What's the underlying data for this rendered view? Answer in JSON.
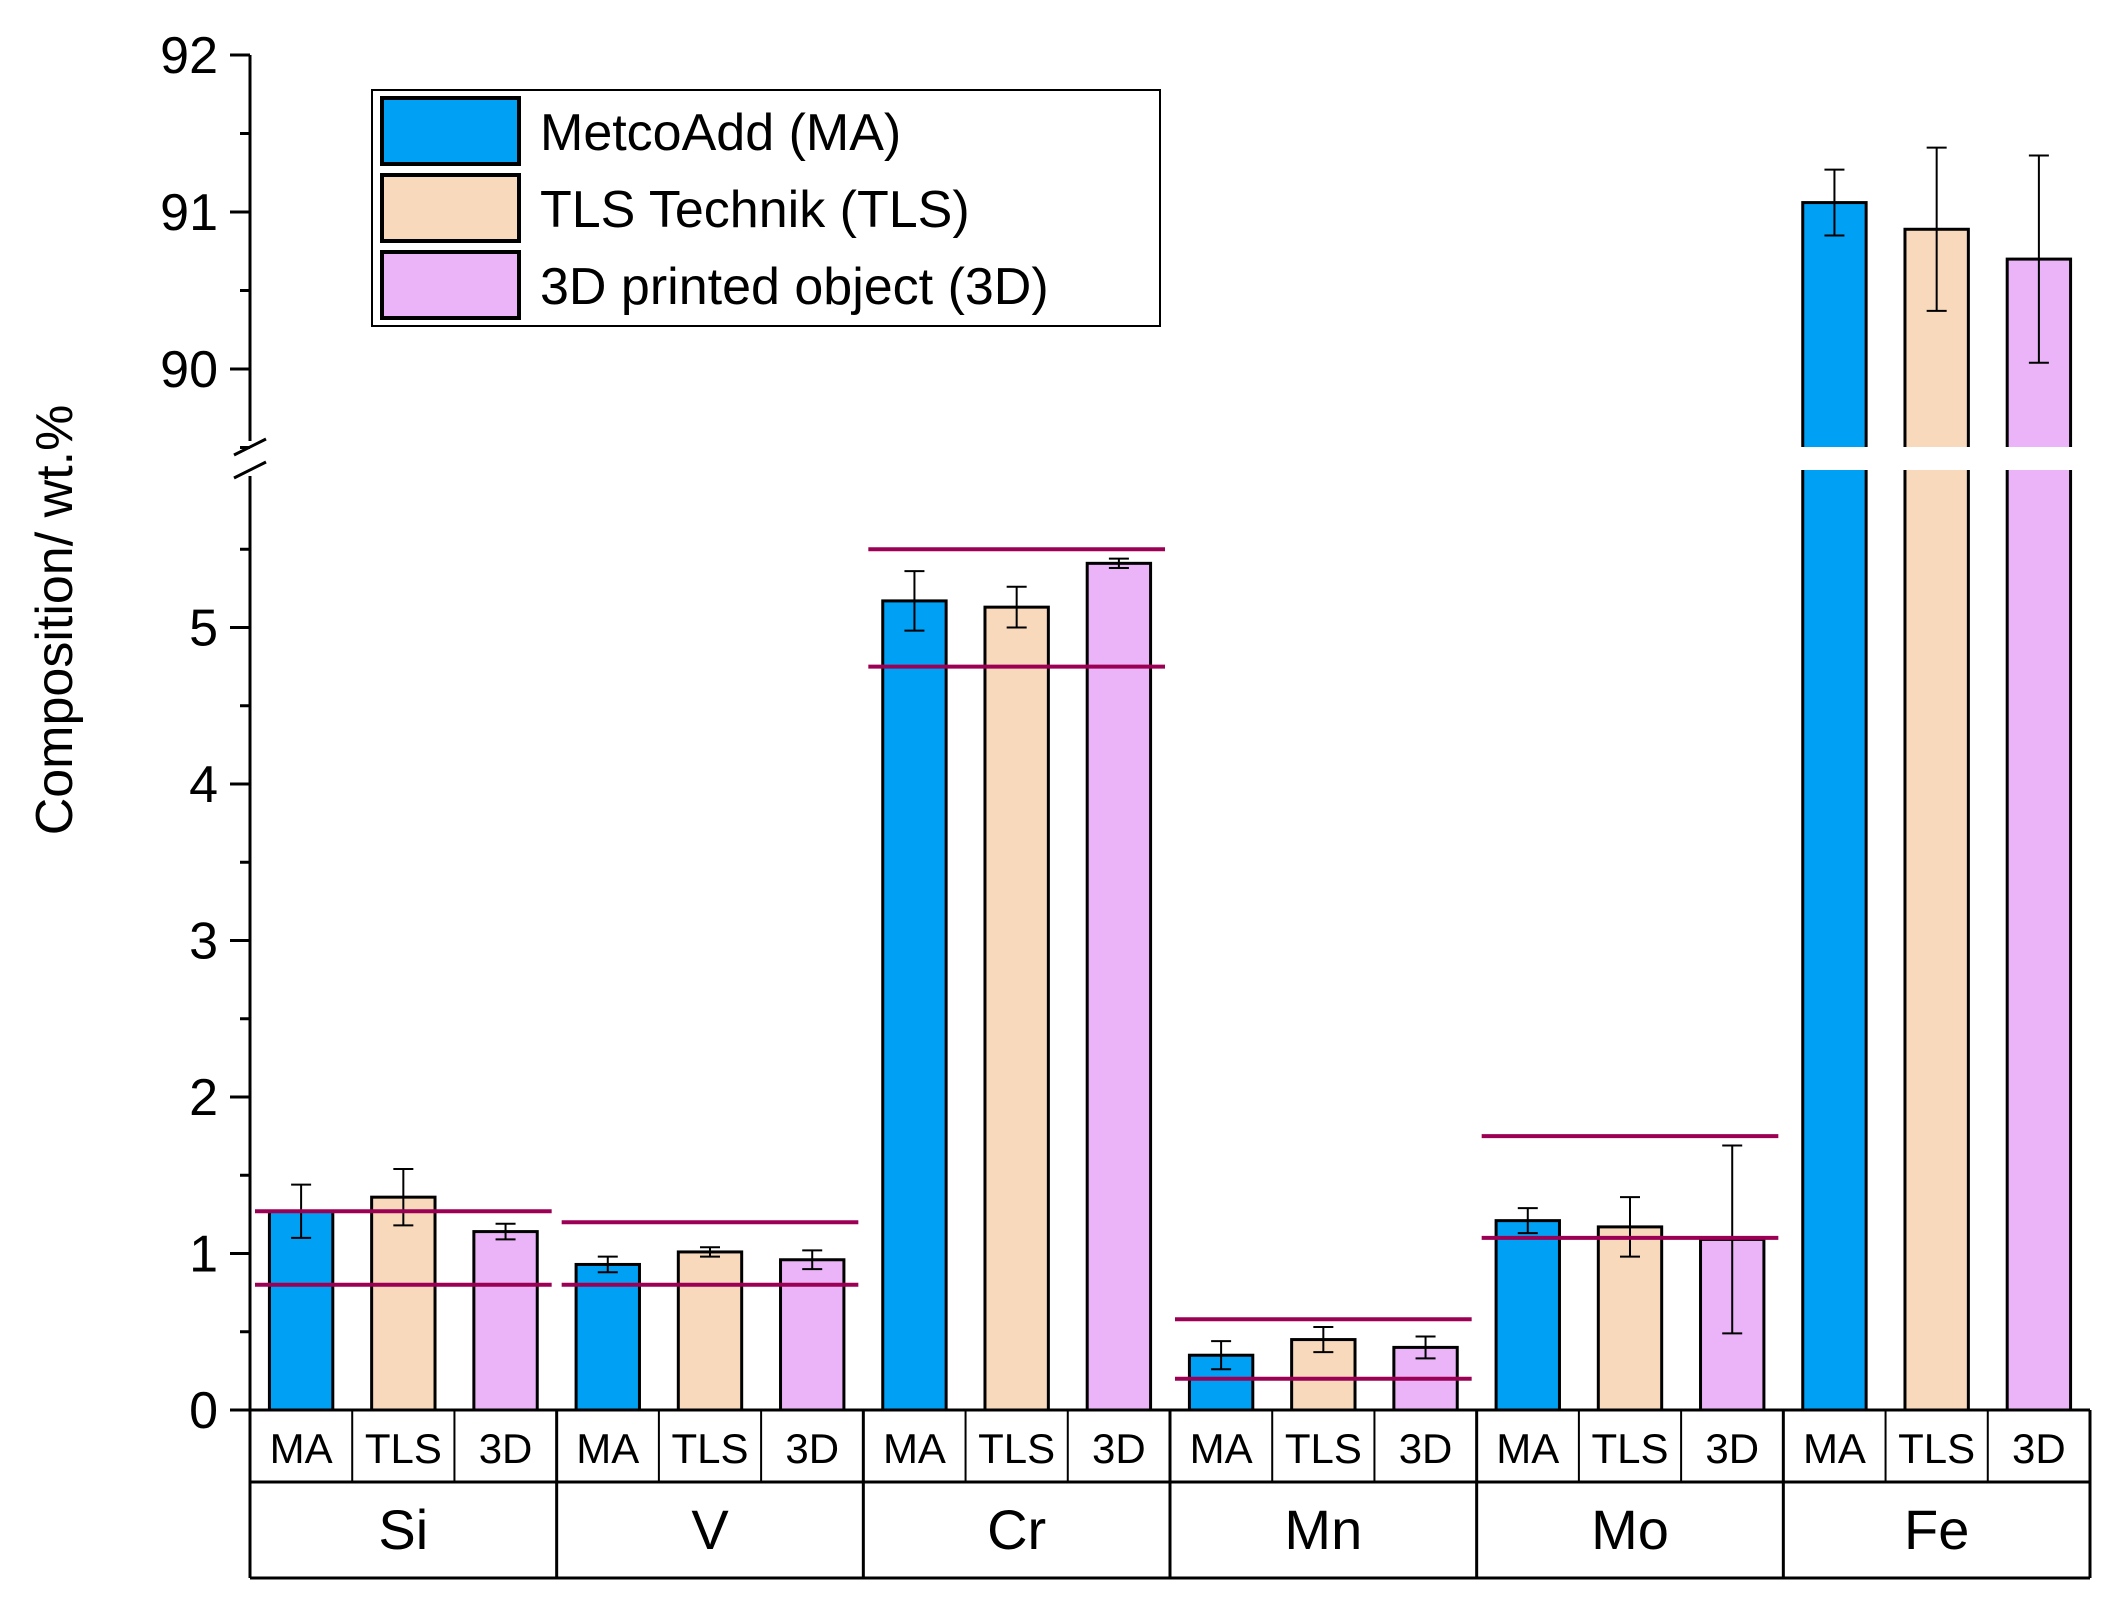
{
  "chart_data": {
    "type": "bar",
    "ylabel": "Composition/ wt.%",
    "y_axis": {
      "broken": true,
      "lower_range": [
        0,
        5.9
      ],
      "upper_range": [
        89.5,
        92
      ],
      "lower_ticks": [
        "0",
        "1",
        "2",
        "3",
        "4",
        "5"
      ],
      "upper_ticks": [
        "90",
        "91",
        "92"
      ]
    },
    "groups": [
      "Si",
      "V",
      "Cr",
      "Mn",
      "Mo",
      "Fe"
    ],
    "sub_categories": [
      "MA",
      "TLS",
      "3D"
    ],
    "series": [
      {
        "name": "MetcoAdd (MA)",
        "key": "MA",
        "color": "#00A0F5",
        "values": [
          1.27,
          0.93,
          5.17,
          0.35,
          1.21,
          91.06
        ],
        "errors": [
          0.17,
          0.05,
          0.19,
          0.09,
          0.08,
          0.21
        ]
      },
      {
        "name": "TLS Technik (TLS)",
        "key": "TLS",
        "color": "#F9D9BC",
        "values": [
          1.36,
          1.01,
          5.13,
          0.45,
          1.17,
          90.89
        ],
        "errors": [
          0.18,
          0.03,
          0.13,
          0.08,
          0.19,
          0.52
        ]
      },
      {
        "name": "3D printed object (3D)",
        "key": "3D",
        "color": "#EBB4F8",
        "values": [
          1.14,
          0.96,
          5.41,
          0.4,
          1.09,
          90.7
        ],
        "errors": [
          0.05,
          0.06,
          0.03,
          0.07,
          0.6,
          0.66
        ]
      }
    ],
    "limit_lines": [
      {
        "group": "Si",
        "min": 0.8,
        "max": 1.27
      },
      {
        "group": "V",
        "min": 0.8,
        "max": 1.2
      },
      {
        "group": "Cr",
        "min": 4.75,
        "max": 5.5
      },
      {
        "group": "Mn",
        "min": 0.2,
        "max": 0.58
      },
      {
        "group": "Mo",
        "min": 1.1,
        "max": 1.75
      }
    ],
    "colors": {
      "limit_line": "#9B0055",
      "axis": "#000000"
    },
    "legend": {
      "position": "top-left"
    }
  }
}
